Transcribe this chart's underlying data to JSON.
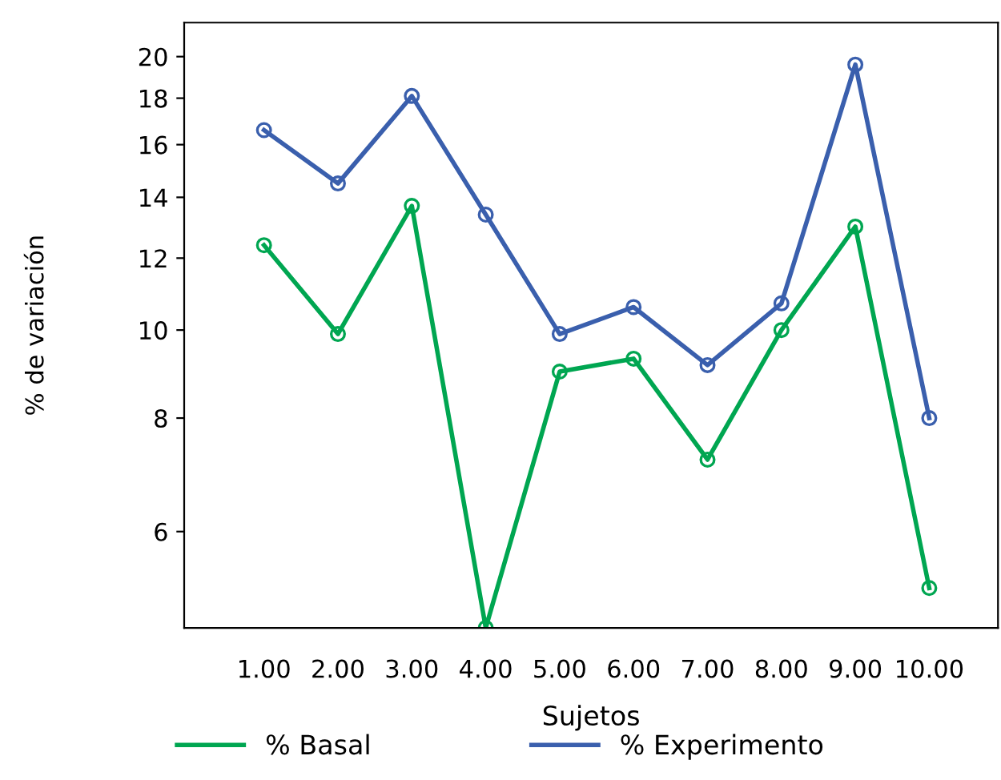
{
  "chart_data": {
    "type": "line",
    "xlabel": "Sujetos",
    "ylabel": "% de variación",
    "categories": [
      "1.00",
      "2.00",
      "3.00",
      "4.00",
      "5.00",
      "6.00",
      "7.00",
      "8.00",
      "9.00",
      "10.00"
    ],
    "series": [
      {
        "name": "% Basal",
        "color": "#00a651",
        "values": [
          12.4,
          9.9,
          13.7,
          4.7,
          9.0,
          9.3,
          7.2,
          10.0,
          13.0,
          5.2
        ]
      },
      {
        "name": "% Experimento",
        "color": "#3a5fad",
        "values": [
          16.6,
          14.5,
          18.1,
          13.4,
          9.9,
          10.6,
          9.15,
          10.7,
          19.6,
          8.0
        ]
      }
    ],
    "log": "y",
    "ylim": [
      4.7,
      21.8
    ],
    "yticks": [
      6,
      8,
      10,
      12,
      14,
      16,
      18,
      20
    ],
    "marker": "circle",
    "line_style": "solid",
    "grid": false,
    "legend": "bottom"
  }
}
